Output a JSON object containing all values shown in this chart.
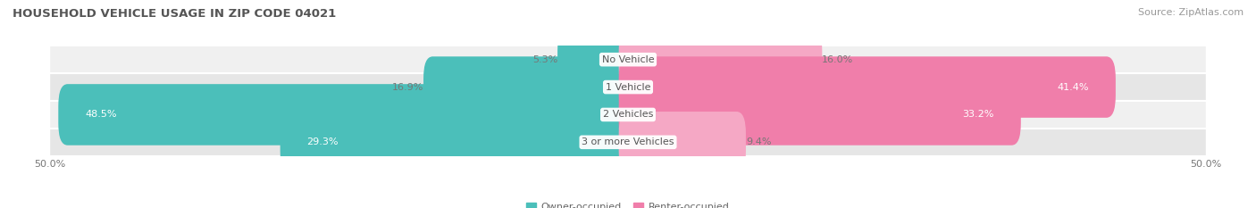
{
  "title": "HOUSEHOLD VEHICLE USAGE IN ZIP CODE 04021",
  "source": "Source: ZipAtlas.com",
  "categories": [
    "No Vehicle",
    "1 Vehicle",
    "2 Vehicles",
    "3 or more Vehicles"
  ],
  "owner_values": [
    5.3,
    16.9,
    48.5,
    29.3
  ],
  "renter_values": [
    16.0,
    41.4,
    33.2,
    9.4
  ],
  "owner_color": "#4bbfba",
  "renter_color": "#f07eaa",
  "renter_color_light": "#f5a8c5",
  "row_bg_colors": [
    "#f0f0f0",
    "#e6e6e6"
  ],
  "owner_label": "Owner-occupied",
  "renter_label": "Renter-occupied",
  "xlim_left": -50,
  "xlim_right": 50,
  "title_fontsize": 9.5,
  "source_fontsize": 8,
  "label_fontsize": 8,
  "bar_label_fontsize": 8,
  "legend_fontsize": 8,
  "tick_fontsize": 8,
  "bar_height": 0.62,
  "label_color_dark": "#777777",
  "label_color_white": "#ffffff",
  "center_label_color": "#555555"
}
